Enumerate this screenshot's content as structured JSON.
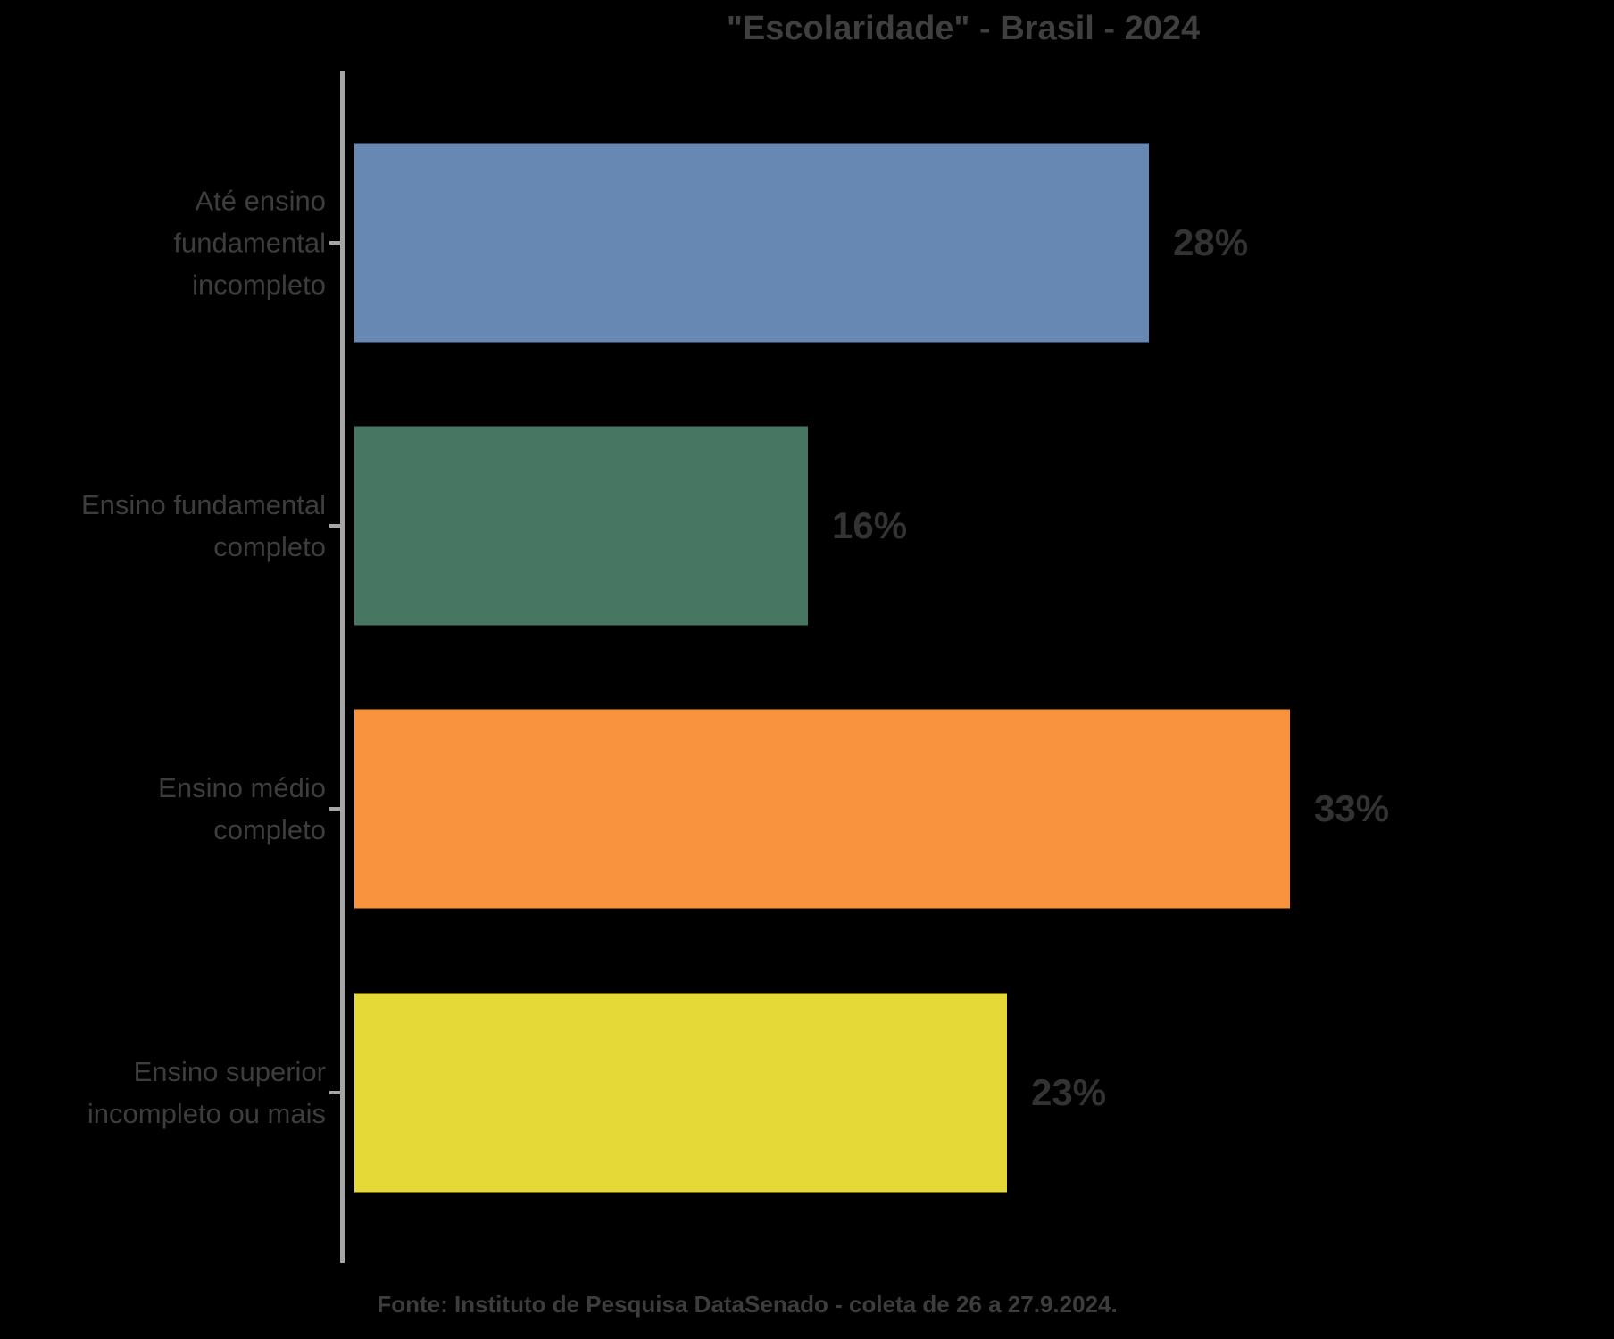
{
  "title": "\"Escolaridade\" - Brasil - 2024",
  "source_note": "Fonte: Instituto de Pesquisa DataSenado - coleta de 26 a 27.9.2024.",
  "chart_data": {
    "type": "bar",
    "orientation": "horizontal",
    "title": "\"Escolaridade\" - Brasil - 2024",
    "categories": [
      "Até ensino\nfundamental\nincompleto",
      "Ensino fundamental\ncompleto",
      "Ensino médio\ncompleto",
      "Ensino superior\nincompleto ou mais"
    ],
    "values": [
      28,
      16,
      33,
      23
    ],
    "value_labels": [
      "28%",
      "16%",
      "33%",
      "23%"
    ],
    "value_unit": "%",
    "bar_colors": [
      "#6688b3",
      "#477663",
      "#f9933d",
      "#e5d938"
    ],
    "background_color": "#000000",
    "text_color": "#3d3d3d",
    "value_label_color": "#333333",
    "axis_color": "#a6a6a6",
    "grid": false,
    "legend": "none",
    "annotation": "Fonte: Instituto de Pesquisa DataSenado - coleta de 26 a 27.9.2024."
  }
}
